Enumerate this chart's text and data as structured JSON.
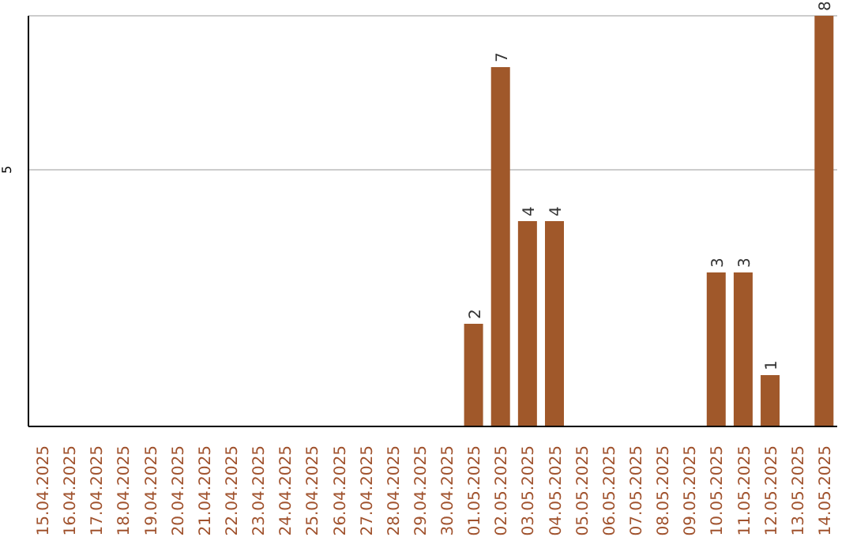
{
  "chart_data": {
    "type": "bar",
    "categories": [
      "15.04.2025",
      "16.04.2025",
      "17.04.2025",
      "18.04.2025",
      "19.04.2025",
      "20.04.2025",
      "21.04.2025",
      "22.04.2025",
      "23.04.2025",
      "24.04.2025",
      "25.04.2025",
      "26.04.2025",
      "27.04.2025",
      "28.04.2025",
      "29.04.2025",
      "30.04.2025",
      "01.05.2025",
      "02.05.2025",
      "03.05.2025",
      "04.05.2025",
      "05.05.2025",
      "06.05.2025",
      "07.05.2025",
      "08.05.2025",
      "09.05.2025",
      "10.05.2025",
      "11.05.2025",
      "12.05.2025",
      "13.05.2025",
      "14.05.2025"
    ],
    "values": [
      null,
      null,
      null,
      null,
      null,
      null,
      null,
      null,
      null,
      null,
      null,
      null,
      null,
      null,
      null,
      null,
      2,
      7,
      4,
      4,
      null,
      null,
      null,
      null,
      null,
      3,
      3,
      1,
      null,
      8
    ],
    "data_labels": true,
    "color": "#a0582a",
    "ylim": [
      0,
      8
    ],
    "yticks": [
      5
    ],
    "grid": "y"
  }
}
